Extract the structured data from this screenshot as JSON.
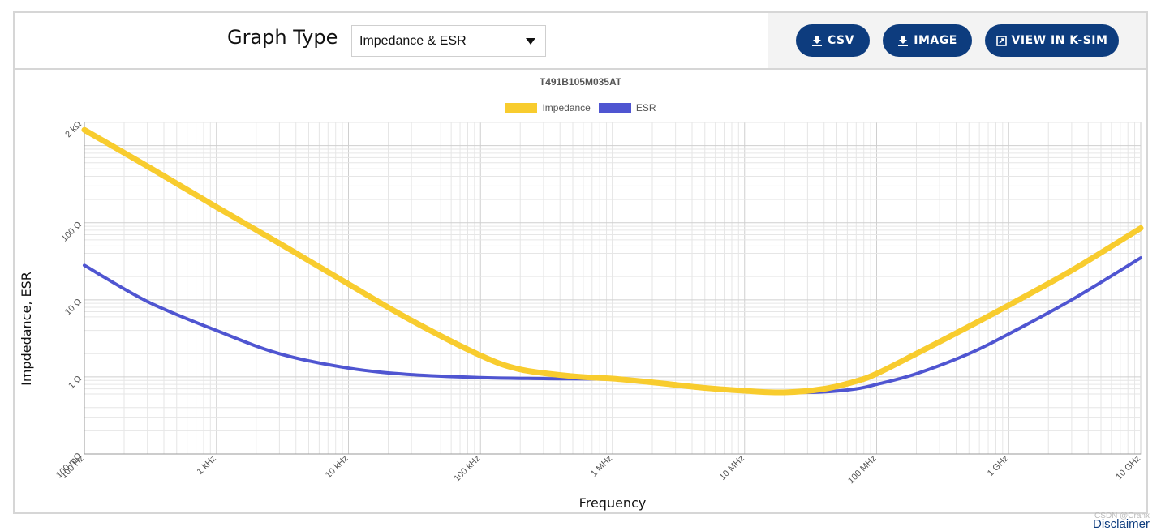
{
  "toolbar": {
    "graph_type_label": "Graph Type",
    "graph_type_value": "Impedance & ESR",
    "buttons": [
      {
        "label": "CSV",
        "icon": "download-icon"
      },
      {
        "label": "IMAGE",
        "icon": "download-icon"
      },
      {
        "label": "VIEW IN K-SIM",
        "icon": "external-link-icon"
      }
    ]
  },
  "colors": {
    "impedance": "#f8cc2e",
    "esr": "#4f55d1",
    "button": "#0d3c7e"
  },
  "footer": {
    "watermark": "CSDN @Cranx",
    "disclaimer": "Disclaimer"
  },
  "chart_data": {
    "type": "line",
    "title": "T491B105M035AT",
    "xlabel": "Frequency",
    "ylabel": "Impdedance, ESR",
    "x_scale": "log",
    "y_scale": "log",
    "xlim": [
      100,
      10000000000
    ],
    "ylim": [
      0.1,
      2000
    ],
    "grid": true,
    "legend": "top-center",
    "x_ticks": [
      {
        "value": 100,
        "label": "100 Hz"
      },
      {
        "value": 1000,
        "label": "1 kHz"
      },
      {
        "value": 10000,
        "label": "10 kHz"
      },
      {
        "value": 100000,
        "label": "100 kHz"
      },
      {
        "value": 1000000,
        "label": "1 MHz"
      },
      {
        "value": 10000000,
        "label": "10 MHz"
      },
      {
        "value": 100000000,
        "label": "100 MHz"
      },
      {
        "value": 1000000000,
        "label": "1 GHz"
      },
      {
        "value": 10000000000,
        "label": "10 GHz"
      }
    ],
    "y_ticks": [
      {
        "value": 0.1,
        "label": "100 mΩ"
      },
      {
        "value": 1,
        "label": "1 Ω"
      },
      {
        "value": 10,
        "label": "10 Ω"
      },
      {
        "value": 100,
        "label": "100 Ω"
      },
      {
        "value": 2000,
        "label": "2 kΩ"
      }
    ],
    "series": [
      {
        "name": "Impedance",
        "x": [
          100,
          300,
          1000,
          3000,
          10000,
          30000,
          100000,
          200000,
          500000,
          1000000,
          2000000,
          5000000,
          10000000,
          20000000,
          40000000,
          70000000,
          100000000,
          200000000,
          500000000,
          1000000000,
          3000000000,
          10000000000
        ],
        "y": [
          1600,
          540,
          160,
          54,
          16,
          5.4,
          1.9,
          1.25,
          1.02,
          0.95,
          0.85,
          0.72,
          0.66,
          0.63,
          0.7,
          0.88,
          1.1,
          2.0,
          4.5,
          8.5,
          24,
          85
        ]
      },
      {
        "name": "ESR",
        "x": [
          100,
          300,
          1000,
          3000,
          10000,
          30000,
          100000,
          300000,
          1000000,
          2000000,
          5000000,
          10000000,
          20000000,
          40000000,
          70000000,
          100000000,
          200000000,
          500000000,
          1000000000,
          3000000000,
          10000000000
        ],
        "y": [
          28,
          9.5,
          4,
          2,
          1.3,
          1.07,
          0.98,
          0.95,
          0.93,
          0.86,
          0.72,
          0.66,
          0.63,
          0.64,
          0.7,
          0.8,
          1.1,
          2.0,
          3.6,
          10,
          35
        ]
      }
    ]
  }
}
